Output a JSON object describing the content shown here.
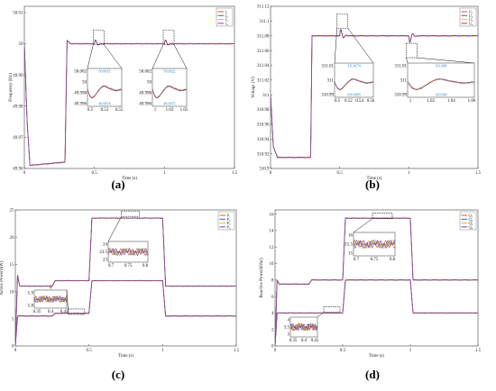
{
  "colors": {
    "c1": "#e8571f",
    "c2": "#1f6fbf",
    "c3": "#f0b22a",
    "c4": "#7b3fa0"
  },
  "chart_data": [
    {
      "id": "a",
      "type": "line",
      "panel_label": "(a)",
      "xlabel": "Time (s)",
      "ylabel": "Frequency (Hz)",
      "xlim": [
        0,
        1.5
      ],
      "ylim": [
        49.96,
        50.012
      ],
      "xticks": [
        0,
        0.5,
        1,
        1.5
      ],
      "yticks": [
        49.96,
        49.97,
        49.98,
        49.99,
        50.0,
        50.01
      ],
      "ytick_labels": [
        "49.96",
        "49.97",
        "49.98",
        "49.99",
        "50",
        "50.01"
      ],
      "series": [
        {
          "name": "f₁"
        },
        {
          "name": "f₂"
        },
        {
          "name": "f₃"
        },
        {
          "name": "f₄"
        }
      ],
      "profile": {
        "x": [
          0,
          0.02,
          0.04,
          0.28,
          0.29,
          0.305,
          0.33,
          1.5
        ],
        "y": [
          50.0,
          49.975,
          49.961,
          49.962,
          49.962,
          50.001,
          50.0,
          50.0
        ]
      },
      "events": [
        {
          "x": 0.5,
          "amp": 0.002
        },
        {
          "x": 1.0,
          "amp": 0.002
        }
      ],
      "insets": [
        {
          "yticks": [
            "50.002",
            "50",
            "49.998",
            "49.996"
          ],
          "xticks": [
            "0.5",
            "0.53",
            "0.55"
          ],
          "annot_top": "50.0013",
          "annot_bottom": "49.9974"
        },
        {
          "yticks": [
            "50.002",
            "50",
            "49.998",
            "49.996"
          ],
          "xticks": [
            "1",
            "1.03",
            "1.05"
          ],
          "annot_top": "50.0022",
          "annot_bottom": "49.9975"
        }
      ]
    },
    {
      "id": "b",
      "type": "line",
      "panel_label": "(b)",
      "xlabel": "Time (s)",
      "ylabel": "Voltage (V)",
      "xlim": [
        0,
        1.5
      ],
      "ylim": [
        310.9,
        311.12
      ],
      "xticks": [
        0,
        0.5,
        1,
        1.5
      ],
      "yticks": [
        310.9,
        310.92,
        310.94,
        310.96,
        310.98,
        311.0,
        311.02,
        311.04,
        311.06,
        311.08,
        311.1,
        311.12
      ],
      "ytick_labels": [
        "310.9",
        "310.92",
        "310.94",
        "310.96",
        "310.98",
        "311",
        "311.02",
        "311.04",
        "311.06",
        "311.08",
        "311.1",
        "311.12"
      ],
      "series": [
        {
          "name": "U₁"
        },
        {
          "name": "U₂"
        },
        {
          "name": "U₃"
        },
        {
          "name": "U₄"
        }
      ],
      "profile": {
        "x": [
          0,
          0.02,
          0.05,
          0.28,
          0.29,
          0.3,
          1.5
        ],
        "y": [
          311.0,
          310.93,
          310.915,
          310.915,
          310.915,
          311.08,
          311.08
        ]
      },
      "events": [
        {
          "x": 0.5,
          "amp": 0.015
        },
        {
          "x": 1.0,
          "amp": -0.015
        }
      ],
      "insets": [
        {
          "yticks": [
            "311.01",
            "311",
            "310.99"
          ],
          "xticks": [
            "0.5",
            "0.52",
            "0.54",
            "0.56"
          ],
          "annot_top": "311.0174",
          "annot_bottom": "310.9995"
        },
        {
          "yticks": [
            "311.01",
            "311",
            "310.99"
          ],
          "xticks": [
            "1",
            "1.02",
            "1.04",
            "1.06"
          ],
          "annot_top": "311.008",
          "annot_bottom": "310.990"
        }
      ]
    },
    {
      "id": "c",
      "type": "line",
      "panel_label": "(c)",
      "xlabel": "Time (s)",
      "ylabel": "Active Power(kW)",
      "xlim": [
        0,
        1.5
      ],
      "ylim": [
        0,
        25
      ],
      "xticks": [
        0,
        0.5,
        1,
        1.5
      ],
      "yticks": [
        0,
        5,
        10,
        15,
        20,
        25
      ],
      "ytick_labels": [
        "0",
        "5",
        "10",
        "15",
        "20",
        "25"
      ],
      "series": [
        {
          "name": "P₁"
        },
        {
          "name": "P₂"
        },
        {
          "name": "P₃"
        },
        {
          "name": "P₄"
        }
      ],
      "upper": {
        "x": [
          0,
          0.015,
          0.03,
          0.25,
          0.27,
          0.5,
          0.52,
          1.0,
          1.02,
          1.5
        ],
        "y": [
          0,
          13,
          11,
          11,
          12,
          12,
          23.5,
          23.5,
          11,
          11
        ]
      },
      "lower": {
        "x": [
          0,
          0.015,
          0.03,
          0.25,
          0.27,
          0.5,
          0.52,
          1.0,
          1.02,
          1.5
        ],
        "y": [
          0,
          5.5,
          5.5,
          5.5,
          6,
          6,
          12,
          12,
          5.5,
          5.5
        ]
      },
      "midlabel": "6",
      "insets": [
        {
          "yticks": [
            "24",
            "23.5",
            "23"
          ],
          "xticks": [
            "0.7",
            "0.75",
            "0.8"
          ]
        },
        {
          "yticks": [
            "5.9",
            "5.8"
          ],
          "xticks": [
            "0.35",
            "0.4",
            "0.45"
          ]
        }
      ]
    },
    {
      "id": "d",
      "type": "line",
      "panel_label": "(d)",
      "xlabel": "Time (s)",
      "ylabel": "Reactive Power(kVar)",
      "xlim": [
        0,
        1.5
      ],
      "ylim": [
        0,
        16.5
      ],
      "xticks": [
        0,
        0.5,
        1,
        1.5
      ],
      "yticks": [
        0,
        2,
        4,
        6,
        8,
        10,
        12,
        14,
        16
      ],
      "ytick_labels": [
        "0",
        "2",
        "4",
        "6",
        "8",
        "10",
        "12",
        "14",
        "16"
      ],
      "series": [
        {
          "name": "Q₁"
        },
        {
          "name": "Q₂"
        },
        {
          "name": "Q₃"
        },
        {
          "name": "Q₄"
        }
      ],
      "upper": {
        "x": [
          0,
          0.015,
          0.03,
          0.25,
          0.27,
          0.5,
          0.52,
          1.0,
          1.02,
          1.5
        ],
        "y": [
          0,
          8,
          7.5,
          7.5,
          8,
          8,
          15.5,
          15.5,
          8,
          8
        ]
      },
      "lower": {
        "x": [
          0,
          0.015,
          0.03,
          0.25,
          0.27,
          0.5,
          0.52,
          1.0,
          1.02,
          1.5
        ],
        "y": [
          0,
          4,
          4,
          4,
          4,
          4,
          8,
          8,
          4,
          4
        ]
      },
      "insets": [
        {
          "yticks": [
            "16",
            "15.5",
            "15"
          ],
          "xticks": [
            "0.7",
            "0.75",
            "0.8"
          ]
        },
        {
          "yticks": [
            "4",
            "3.5",
            "3"
          ],
          "xticks": [
            "0.35",
            "0.4",
            "0.45"
          ]
        }
      ]
    }
  ]
}
